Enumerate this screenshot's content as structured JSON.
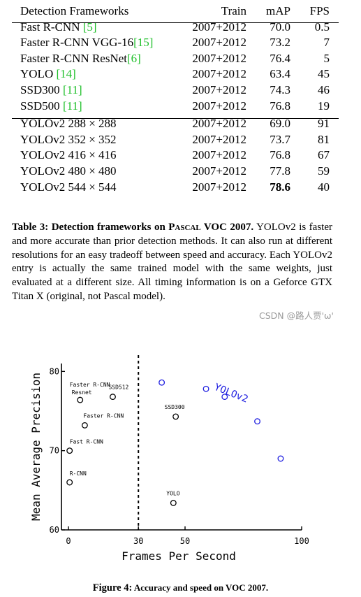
{
  "table": {
    "headers": [
      "Detection Frameworks",
      "Train",
      "mAP",
      "FPS"
    ],
    "rows": [
      {
        "name": "Fast R-CNN ",
        "cite": "[5]",
        "train": "2007+2012",
        "map": "70.0",
        "fps": "0.5",
        "bold": false
      },
      {
        "name": "Faster R-CNN VGG-16",
        "cite": "[15]",
        "train": "2007+2012",
        "map": "73.2",
        "fps": "7",
        "bold": false
      },
      {
        "name": "Faster R-CNN ResNet",
        "cite": "[6]",
        "train": "2007+2012",
        "map": "76.4",
        "fps": "5",
        "bold": false
      },
      {
        "name": "YOLO ",
        "cite": "[14]",
        "train": "2007+2012",
        "map": "63.4",
        "fps": "45",
        "bold": false
      },
      {
        "name": "SSD300 ",
        "cite": "[11]",
        "train": "2007+2012",
        "map": "74.3",
        "fps": "46",
        "bold": false
      },
      {
        "name": "SSD500 ",
        "cite": "[11]",
        "train": "2007+2012",
        "map": "76.8",
        "fps": "19",
        "bold": false
      },
      {
        "name": "YOLOv2 288 × 288",
        "cite": "",
        "train": "2007+2012",
        "map": "69.0",
        "fps": "91",
        "bold": false
      },
      {
        "name": "YOLOv2 352 × 352",
        "cite": "",
        "train": "2007+2012",
        "map": "73.7",
        "fps": "81",
        "bold": false
      },
      {
        "name": "YOLOv2 416 × 416",
        "cite": "",
        "train": "2007+2012",
        "map": "76.8",
        "fps": "67",
        "bold": false
      },
      {
        "name": "YOLOv2 480 × 480",
        "cite": "",
        "train": "2007+2012",
        "map": "77.8",
        "fps": "59",
        "bold": false
      },
      {
        "name": "YOLOv2 544 × 544",
        "cite": "",
        "train": "2007+2012",
        "map": "78.6",
        "fps": "40",
        "bold": true
      }
    ]
  },
  "caption": {
    "lead_a": "Table 3:  Detection frameworks on ",
    "lead_sc": "Pascal",
    "lead_b": " VOC 2007.",
    "body": "YOLOv2 is faster and more accurate than prior detection methods.  It can also run at different resolutions for an easy tradeoff between speed and accuracy. Each YOLOv2 entry is actually the same trained model with the same weights, just evaluated at a different size.  All timing information is on a Geforce GTX Titan X (original, not Pascal model)."
  },
  "watermark": "CSDN @路人贾'ω'",
  "figure_caption": {
    "label": "Figure 4:",
    "text": " Accuracy and speed on VOC 2007."
  },
  "chart_data": {
    "type": "scatter",
    "xlabel": "Frames Per Second",
    "ylabel": "Mean Average Precision",
    "xlim": [
      -3,
      100
    ],
    "ylim": [
      60,
      81
    ],
    "xticks": [
      "0",
      "30",
      "50",
      "100"
    ],
    "yticks": [
      "60",
      "70",
      "80"
    ],
    "vline_x": 30,
    "series_label": "YOLOv2",
    "colors": {
      "baseline": "#000000",
      "yolov2": "#1f1fe0"
    },
    "series": [
      {
        "name": "baselines",
        "points": [
          {
            "label": "R-CNN",
            "x": 0.5,
            "y": 66.0
          },
          {
            "label": "Fast R-CNN",
            "x": 0.5,
            "y": 70.0
          },
          {
            "label": "Faster R-CNN",
            "x": 7,
            "y": 73.2
          },
          {
            "label": "Resnet",
            "x": 5,
            "y": 76.4
          },
          {
            "label": "SSD512",
            "x": 19,
            "y": 76.8
          },
          {
            "label": "SSD300",
            "x": 46,
            "y": 74.3
          },
          {
            "label": "YOLO",
            "x": 45,
            "y": 63.4
          }
        ]
      },
      {
        "name": "YOLOv2",
        "points": [
          {
            "x": 40,
            "y": 78.6
          },
          {
            "x": 59,
            "y": 77.8
          },
          {
            "x": 67,
            "y": 76.8
          },
          {
            "x": 81,
            "y": 73.7
          },
          {
            "x": 91,
            "y": 69.0
          }
        ]
      }
    ],
    "extra_labels": [
      "Faster R-CNN"
    ]
  }
}
